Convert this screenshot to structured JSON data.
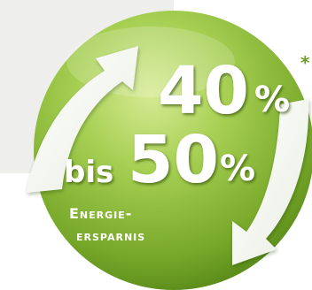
{
  "badge": {
    "value_top": "40",
    "percent_top": "%",
    "prefix": "bis",
    "value_bottom": "50",
    "percent_bottom": "%",
    "label_line1": "Energie-",
    "label_line2": "ersparnis",
    "footnote_mark": "*"
  },
  "colors": {
    "ball_light": "#c8e27a",
    "ball_mid": "#8cbd3a",
    "ball_dark": "#4f7f14",
    "text": "#ffffff",
    "arrow": "#ffffff",
    "background_panel": "#eeeeec"
  }
}
